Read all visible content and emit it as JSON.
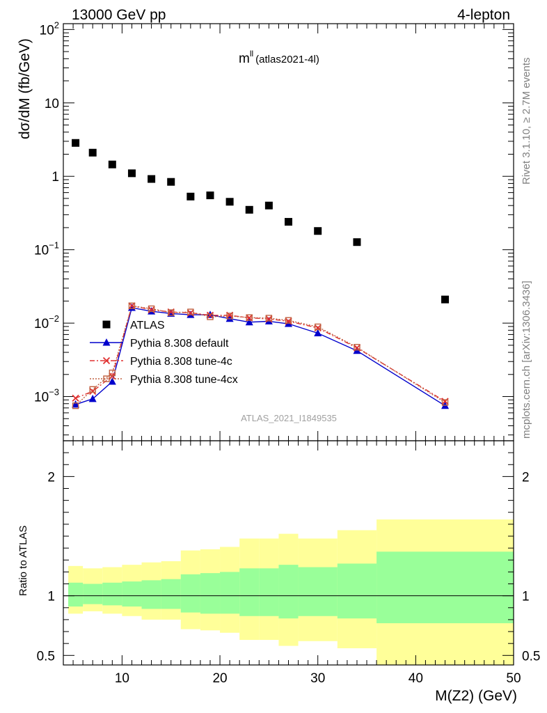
{
  "header": {
    "process": "13000 GeV pp",
    "channel": "4-lepton"
  },
  "plot_title": {
    "main": "m",
    "sup": "ll",
    "sub": "(atlas2021-4l)"
  },
  "side_labels": {
    "rivet": "Rivet 3.1.10, ≥ 2.7M events",
    "mcplots": "mcplots.cern.ch [arXiv:1306.3436]"
  },
  "watermark": "ATLAS_2021_I1849535",
  "chart_data": [
    {
      "type": "scatter",
      "panel": "main",
      "ylabel": "dσ/dM (fb/GeV)",
      "yscale": "log",
      "ylim": [
        0.00025,
        120
      ],
      "xlim": [
        4,
        50
      ],
      "yticks": [
        {
          "value": 100,
          "base": "10",
          "exp": "2"
        },
        {
          "value": 10,
          "base": "10",
          "exp": ""
        },
        {
          "value": 1,
          "base": "1",
          "exp": ""
        },
        {
          "value": 0.1,
          "base": "10",
          "exp": "−1"
        },
        {
          "value": 0.01,
          "base": "10",
          "exp": "−2"
        },
        {
          "value": 0.001,
          "base": "10",
          "exp": "−3"
        }
      ],
      "legend_position": "lower-left",
      "series": [
        {
          "name": "ATLAS",
          "color": "#000000",
          "marker": "square",
          "x": [
            5.25,
            7,
            9,
            11,
            13,
            15,
            17,
            19,
            21,
            23,
            25,
            27,
            30,
            34,
            43
          ],
          "y": [
            2.85,
            2.1,
            1.45,
            1.1,
            0.92,
            0.84,
            0.53,
            0.55,
            0.45,
            0.35,
            0.4,
            0.24,
            0.18,
            0.127,
            0.021
          ]
        },
        {
          "name": "Pythia 8.308 default",
          "color": "#0000cc",
          "marker": "triangle",
          "line": "solid",
          "x": [
            5.25,
            7,
            9,
            11,
            13,
            15,
            17,
            19,
            21,
            23,
            25,
            27,
            30,
            34,
            43
          ],
          "y": [
            0.00078,
            0.00093,
            0.0016,
            0.0162,
            0.0145,
            0.0135,
            0.013,
            0.013,
            0.0115,
            0.0103,
            0.0106,
            0.0098,
            0.0073,
            0.0042,
            0.00075
          ]
        },
        {
          "name": "Pythia 8.308 tune-4c",
          "color": "#e03030",
          "marker": "cross",
          "line": "dashdot",
          "x": [
            5.25,
            7,
            9,
            11,
            13,
            15,
            17,
            19,
            21,
            23,
            25,
            27,
            30,
            34,
            43
          ],
          "y": [
            0.00095,
            0.00118,
            0.0019,
            0.0172,
            0.0152,
            0.0142,
            0.0138,
            0.0128,
            0.0128,
            0.0118,
            0.0114,
            0.0106,
            0.0086,
            0.0046,
            0.00086
          ]
        },
        {
          "name": "Pythia 8.308 tune-4cx",
          "color": "#c06040",
          "marker": "open-square",
          "line": "dotted",
          "x": [
            5.25,
            7,
            9,
            11,
            13,
            15,
            17,
            19,
            21,
            23,
            25,
            27,
            30,
            34,
            43
          ],
          "y": [
            0.00075,
            0.00125,
            0.0021,
            0.0172,
            0.0157,
            0.0139,
            0.0142,
            0.0122,
            0.0125,
            0.0119,
            0.0117,
            0.0109,
            0.0089,
            0.0047,
            0.00083
          ]
        }
      ]
    },
    {
      "type": "area",
      "panel": "ratio",
      "ylabel": "Ratio to ATLAS",
      "xlabel": "M(Z2) (GeV)",
      "xlim": [
        4,
        50
      ],
      "ylim": [
        0.42,
        2.3
      ],
      "xticks": [
        10,
        20,
        30,
        40,
        50
      ],
      "yticks": [
        0.5,
        1,
        2
      ],
      "reference_line": 1,
      "bands": [
        {
          "name": "total uncertainty",
          "color": "#ffff99",
          "bins": [
            [
              4.5,
              6
            ],
            [
              6,
              8
            ],
            [
              8,
              10
            ],
            [
              10,
              12
            ],
            [
              12,
              14
            ],
            [
              14,
              16
            ],
            [
              16,
              18
            ],
            [
              18,
              20
            ],
            [
              20,
              22
            ],
            [
              22,
              24
            ],
            [
              24,
              26
            ],
            [
              26,
              28
            ],
            [
              28,
              32
            ],
            [
              32,
              36
            ],
            [
              36,
              50
            ]
          ],
          "low": [
            0.85,
            0.87,
            0.85,
            0.83,
            0.8,
            0.8,
            0.72,
            0.71,
            0.69,
            0.63,
            0.63,
            0.58,
            0.62,
            0.56,
            0.42
          ],
          "high": [
            1.25,
            1.23,
            1.24,
            1.26,
            1.28,
            1.29,
            1.38,
            1.39,
            1.41,
            1.48,
            1.48,
            1.52,
            1.48,
            1.55,
            1.64
          ]
        },
        {
          "name": "statistical uncertainty",
          "color": "#99ff99",
          "bins": [
            [
              4.5,
              6
            ],
            [
              6,
              8
            ],
            [
              8,
              10
            ],
            [
              10,
              12
            ],
            [
              12,
              14
            ],
            [
              14,
              16
            ],
            [
              16,
              18
            ],
            [
              18,
              20
            ],
            [
              20,
              22
            ],
            [
              22,
              24
            ],
            [
              24,
              26
            ],
            [
              26,
              28
            ],
            [
              28,
              32
            ],
            [
              32,
              36
            ],
            [
              36,
              50
            ]
          ],
          "low": [
            0.91,
            0.93,
            0.92,
            0.91,
            0.89,
            0.89,
            0.86,
            0.85,
            0.85,
            0.83,
            0.83,
            0.81,
            0.83,
            0.81,
            0.77
          ],
          "high": [
            1.11,
            1.1,
            1.11,
            1.12,
            1.13,
            1.14,
            1.18,
            1.19,
            1.2,
            1.23,
            1.23,
            1.26,
            1.24,
            1.27,
            1.37
          ]
        }
      ]
    }
  ]
}
